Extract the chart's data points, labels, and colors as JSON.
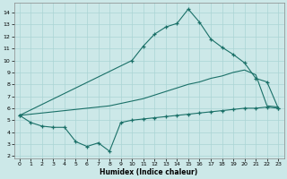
{
  "background_color": "#cce8e8",
  "grid_color": "#aad4d4",
  "line_color": "#1a7068",
  "xlabel": "Humidex (Indice chaleur)",
  "xlim": [
    -0.5,
    23.5
  ],
  "ylim": [
    1.8,
    14.8
  ],
  "xticks": [
    0,
    1,
    2,
    3,
    4,
    5,
    6,
    7,
    8,
    9,
    10,
    11,
    12,
    13,
    14,
    15,
    16,
    17,
    18,
    19,
    20,
    21,
    22,
    23
  ],
  "yticks": [
    2,
    3,
    4,
    5,
    6,
    7,
    8,
    9,
    10,
    11,
    12,
    13,
    14
  ],
  "line_top_x": [
    0,
    10,
    11,
    12,
    13,
    14,
    15,
    16,
    17,
    18,
    19,
    20,
    21,
    22,
    23
  ],
  "line_top_y": [
    5.4,
    10.0,
    11.2,
    12.2,
    12.8,
    13.1,
    14.3,
    13.2,
    11.8,
    11.1,
    10.5,
    9.8,
    8.5,
    8.2,
    6.0
  ],
  "line_mid_x": [
    0,
    1,
    2,
    3,
    4,
    5,
    6,
    7,
    8,
    9,
    10,
    11,
    12,
    13,
    14,
    15,
    16,
    17,
    18,
    19,
    20,
    21,
    22,
    23
  ],
  "line_mid_y": [
    5.4,
    5.5,
    5.6,
    5.7,
    5.8,
    5.9,
    6.0,
    6.1,
    6.2,
    6.4,
    6.6,
    6.8,
    7.1,
    7.4,
    7.7,
    8.0,
    8.2,
    8.5,
    8.7,
    9.0,
    9.2,
    8.8,
    6.2,
    6.1
  ],
  "line_bot_x": [
    0,
    1,
    2,
    3,
    4,
    5,
    6,
    7,
    8,
    9,
    10,
    11,
    12,
    13,
    14,
    15,
    16,
    17,
    18,
    19,
    20,
    21,
    22,
    23
  ],
  "line_bot_y": [
    5.4,
    4.8,
    4.5,
    4.4,
    4.4,
    3.2,
    2.8,
    3.1,
    2.4,
    4.8,
    5.0,
    5.1,
    5.2,
    5.3,
    5.4,
    5.5,
    5.6,
    5.7,
    5.8,
    5.9,
    6.0,
    6.0,
    6.1,
    6.0
  ]
}
